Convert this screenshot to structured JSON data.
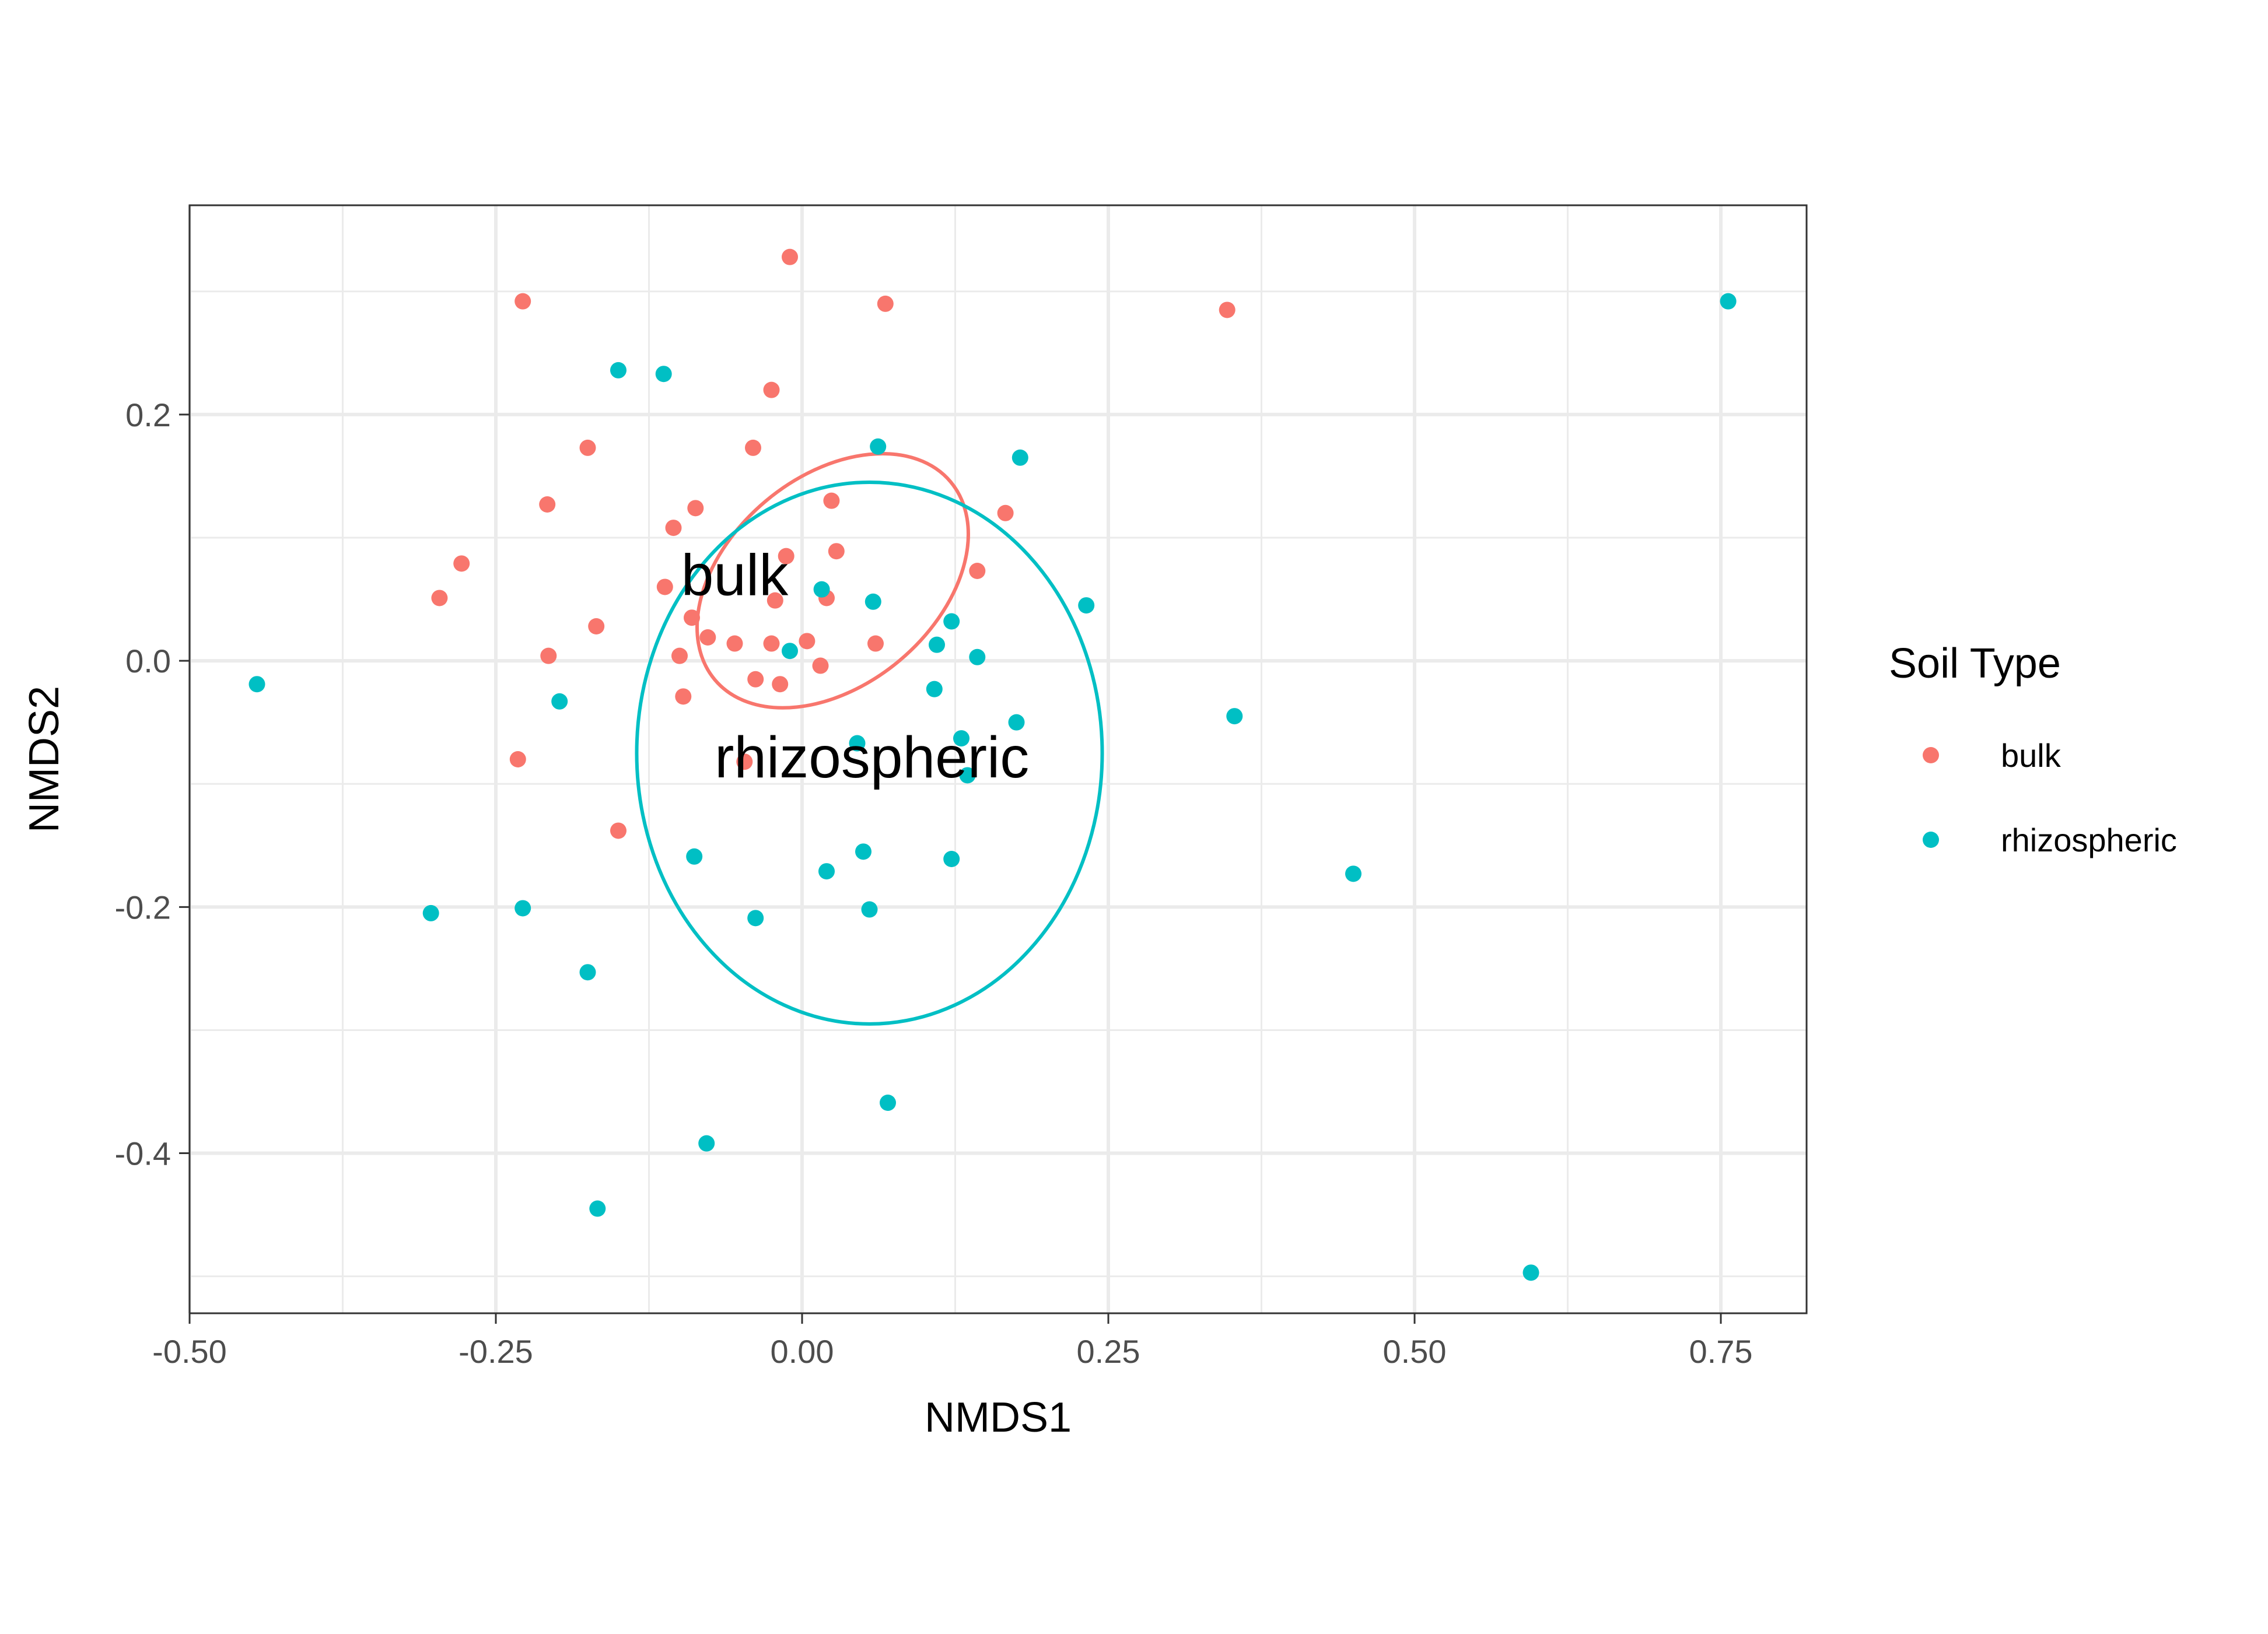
{
  "chart_data": {
    "type": "scatter",
    "title": "",
    "xlabel": "NMDS1",
    "ylabel": "NMDS2",
    "xlim": [
      -0.5,
      0.82
    ],
    "ylim": [
      -0.53,
      0.37
    ],
    "x_ticks": [
      -0.5,
      -0.25,
      0.0,
      0.25,
      0.5,
      0.75
    ],
    "x_tick_labels": [
      "-0.50",
      "-0.25",
      "0.00",
      "0.25",
      "0.50",
      "0.75"
    ],
    "y_ticks": [
      -0.4,
      -0.2,
      0.0,
      0.2
    ],
    "y_tick_labels": [
      "-0.4",
      "-0.2",
      "0.0",
      "0.2"
    ],
    "grid": true,
    "legend": {
      "title": "Soil Type",
      "placement": "right",
      "entries": [
        "bulk",
        "rhizospheric"
      ]
    },
    "series": [
      {
        "name": "bulk",
        "color": "#F8766D",
        "label_text": "bulk",
        "label_at": [
          -0.055,
          0.07
        ],
        "ellipse": {
          "center": [
            0.025,
            0.065
          ],
          "semi_axes": [
            0.085,
            0.125
          ],
          "angle_deg": 50
        },
        "points": [
          [
            -0.01,
            0.328
          ],
          [
            -0.228,
            0.292
          ],
          [
            0.068,
            0.29
          ],
          [
            0.347,
            0.285
          ],
          [
            -0.025,
            0.22
          ],
          [
            -0.175,
            0.173
          ],
          [
            -0.04,
            0.173
          ],
          [
            -0.208,
            0.127
          ],
          [
            0.024,
            0.13
          ],
          [
            -0.087,
            0.124
          ],
          [
            0.166,
            0.12
          ],
          [
            -0.105,
            0.108
          ],
          [
            -0.278,
            0.079
          ],
          [
            -0.013,
            0.085
          ],
          [
            0.028,
            0.089
          ],
          [
            0.143,
            0.073
          ],
          [
            -0.296,
            0.051
          ],
          [
            -0.112,
            0.06
          ],
          [
            -0.022,
            0.049
          ],
          [
            0.02,
            0.051
          ],
          [
            -0.168,
            0.028
          ],
          [
            -0.09,
            0.035
          ],
          [
            -0.077,
            0.019
          ],
          [
            -0.055,
            0.014
          ],
          [
            -0.025,
            0.014
          ],
          [
            0.004,
            0.016
          ],
          [
            0.06,
            0.014
          ],
          [
            -0.207,
            0.004
          ],
          [
            -0.1,
            0.004
          ],
          [
            0.015,
            -0.004
          ],
          [
            -0.038,
            -0.015
          ],
          [
            -0.018,
            -0.019
          ],
          [
            -0.097,
            -0.029
          ],
          [
            -0.232,
            -0.08
          ],
          [
            -0.047,
            -0.082
          ],
          [
            -0.15,
            -0.138
          ]
        ]
      },
      {
        "name": "rhizospheric",
        "color": "#00BFC4",
        "label_text": "rhizospheric",
        "label_at": [
          0.057,
          -0.078
        ],
        "ellipse": {
          "center": [
            0.055,
            -0.075
          ],
          "semi_axes": [
            0.19,
            0.22
          ],
          "angle_deg": 0
        },
        "points": [
          [
            0.756,
            0.292
          ],
          [
            -0.15,
            0.236
          ],
          [
            -0.113,
            0.233
          ],
          [
            0.062,
            0.174
          ],
          [
            0.178,
            0.165
          ],
          [
            0.016,
            0.058
          ],
          [
            0.058,
            0.048
          ],
          [
            0.232,
            0.045
          ],
          [
            0.122,
            0.032
          ],
          [
            0.11,
            0.013
          ],
          [
            -0.01,
            0.008
          ],
          [
            0.143,
            0.003
          ],
          [
            -0.445,
            -0.019
          ],
          [
            0.108,
            -0.023
          ],
          [
            -0.198,
            -0.033
          ],
          [
            0.353,
            -0.045
          ],
          [
            0.175,
            -0.05
          ],
          [
            0.045,
            -0.067
          ],
          [
            0.13,
            -0.063
          ],
          [
            0.135,
            -0.093
          ],
          [
            -0.088,
            -0.159
          ],
          [
            0.05,
            -0.155
          ],
          [
            0.122,
            -0.161
          ],
          [
            0.02,
            -0.171
          ],
          [
            0.45,
            -0.173
          ],
          [
            -0.303,
            -0.205
          ],
          [
            -0.228,
            -0.201
          ],
          [
            0.055,
            -0.202
          ],
          [
            -0.038,
            -0.209
          ],
          [
            -0.175,
            -0.253
          ],
          [
            0.07,
            -0.359
          ],
          [
            -0.078,
            -0.392
          ],
          [
            -0.167,
            -0.445
          ],
          [
            0.595,
            -0.497
          ]
        ]
      }
    ]
  }
}
